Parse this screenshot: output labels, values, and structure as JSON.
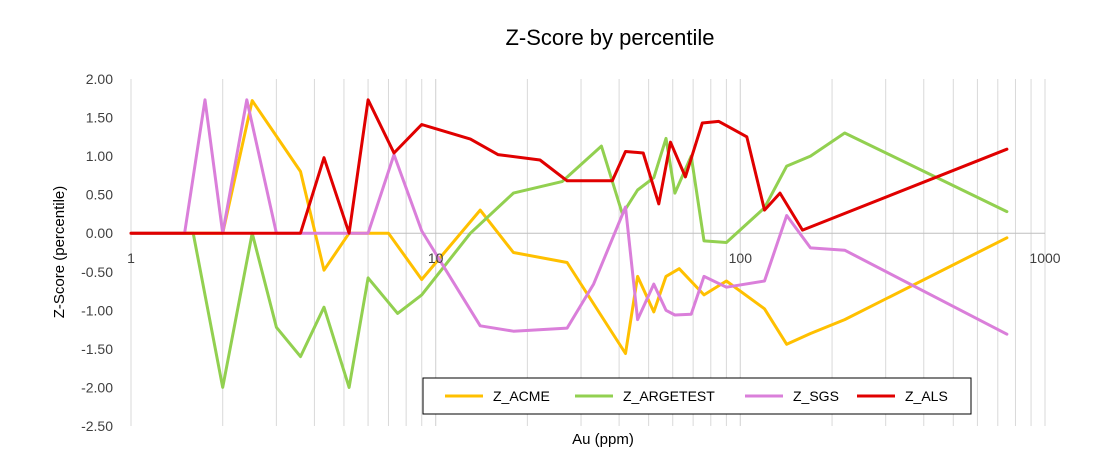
{
  "chart_data": {
    "type": "line",
    "title": "Z-Score by percentile",
    "xlabel": "Au (ppm)",
    "ylabel": "Z-Score (percentile)",
    "xscale": "log",
    "xlim": [
      1,
      1000
    ],
    "ylim": [
      -2.5,
      2.0
    ],
    "x_ticks": [
      "1",
      "10",
      "100",
      "1000"
    ],
    "y_ticks": [
      "2.00",
      "1.50",
      "1.00",
      "0.50",
      "0.00",
      "-0.50",
      "-1.00",
      "-1.50",
      "-2.00",
      "-2.50"
    ],
    "grid": "vertical log gridlines",
    "legend_position": "bottom",
    "series": [
      {
        "name": "Z_ACME",
        "color": "#FFC000",
        "points": [
          [
            1,
            0
          ],
          [
            1.6,
            0
          ],
          [
            2,
            0
          ],
          [
            2.5,
            1.72
          ],
          [
            3.6,
            0.8
          ],
          [
            4.3,
            -0.48
          ],
          [
            5.2,
            0
          ],
          [
            7,
            0
          ],
          [
            9,
            -0.6
          ],
          [
            14,
            0.3
          ],
          [
            18,
            -0.25
          ],
          [
            27,
            -0.38
          ],
          [
            42,
            -1.56
          ],
          [
            46,
            -0.56
          ],
          [
            52,
            -1.02
          ],
          [
            57,
            -0.56
          ],
          [
            63,
            -0.46
          ],
          [
            76,
            -0.8
          ],
          [
            90,
            -0.62
          ],
          [
            120,
            -0.98
          ],
          [
            142,
            -1.44
          ],
          [
            170,
            -1.3
          ],
          [
            220,
            -1.12
          ],
          [
            750,
            -0.06
          ]
        ]
      },
      {
        "name": "Z_ARGETEST",
        "color": "#92D050",
        "points": [
          [
            1,
            0
          ],
          [
            1.6,
            0
          ],
          [
            2,
            -2.0
          ],
          [
            2.5,
            0
          ],
          [
            3,
            -1.22
          ],
          [
            3.6,
            -1.6
          ],
          [
            4.3,
            -0.96
          ],
          [
            5.2,
            -2.0
          ],
          [
            6,
            -0.58
          ],
          [
            7.5,
            -1.04
          ],
          [
            9,
            -0.8
          ],
          [
            13,
            0
          ],
          [
            18,
            0.52
          ],
          [
            26,
            0.67
          ],
          [
            35,
            1.13
          ],
          [
            41,
            0.25
          ],
          [
            46,
            0.56
          ],
          [
            52,
            0.72
          ],
          [
            57,
            1.23
          ],
          [
            61,
            0.52
          ],
          [
            69,
            1.0
          ],
          [
            76,
            -0.1
          ],
          [
            90,
            -0.12
          ],
          [
            120,
            0.33
          ],
          [
            142,
            0.87
          ],
          [
            170,
            1.0
          ],
          [
            220,
            1.3
          ],
          [
            750,
            0.28
          ]
        ]
      },
      {
        "name": "Z_SGS",
        "color": "#DA7FDA",
        "points": [
          [
            1,
            0
          ],
          [
            1.5,
            0
          ],
          [
            1.75,
            1.73
          ],
          [
            2,
            0
          ],
          [
            2.4,
            1.73
          ],
          [
            3,
            0
          ],
          [
            3.4,
            0
          ],
          [
            5.2,
            0
          ],
          [
            6,
            0
          ],
          [
            7.3,
            1.02
          ],
          [
            9,
            0.03
          ],
          [
            14,
            -1.2
          ],
          [
            18,
            -1.27
          ],
          [
            27,
            -1.23
          ],
          [
            33,
            -0.66
          ],
          [
            42,
            0.34
          ],
          [
            46,
            -1.12
          ],
          [
            52,
            -0.66
          ],
          [
            57,
            -1.0
          ],
          [
            61,
            -1.06
          ],
          [
            69,
            -1.05
          ],
          [
            76,
            -0.56
          ],
          [
            90,
            -0.7
          ],
          [
            120,
            -0.62
          ],
          [
            142,
            0.23
          ],
          [
            170,
            -0.19
          ],
          [
            220,
            -0.22
          ],
          [
            750,
            -1.31
          ]
        ]
      },
      {
        "name": "Z_ALS",
        "color": "#E00000",
        "points": [
          [
            1,
            0
          ],
          [
            3.6,
            0
          ],
          [
            4.3,
            0.98
          ],
          [
            5.2,
            0
          ],
          [
            6,
            1.73
          ],
          [
            7.3,
            1.04
          ],
          [
            9,
            1.41
          ],
          [
            13,
            1.22
          ],
          [
            16,
            1.02
          ],
          [
            22,
            0.95
          ],
          [
            27,
            0.68
          ],
          [
            33,
            0.68
          ],
          [
            38,
            0.68
          ],
          [
            42,
            1.06
          ],
          [
            48,
            1.04
          ],
          [
            54,
            0.38
          ],
          [
            59,
            1.18
          ],
          [
            66,
            0.73
          ],
          [
            75,
            1.43
          ],
          [
            85,
            1.45
          ],
          [
            105,
            1.25
          ],
          [
            120,
            0.3
          ],
          [
            135,
            0.52
          ],
          [
            160,
            0.04
          ],
          [
            750,
            1.09
          ]
        ]
      }
    ]
  }
}
